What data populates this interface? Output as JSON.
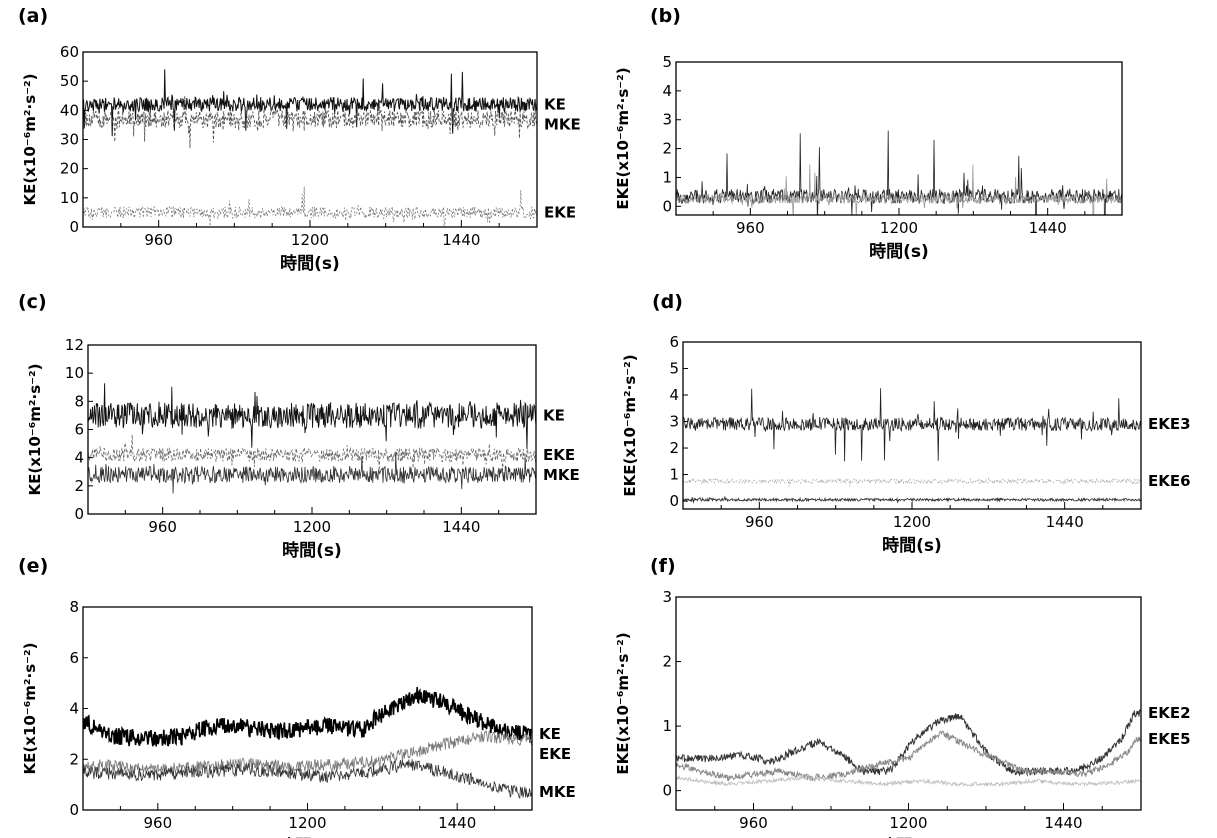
{
  "chart_data": [
    {
      "id": "a",
      "panel_label": "(a)",
      "type": "line",
      "xlabel": "時間(s)",
      "ylabel": "KE(x10⁻⁶m²·s⁻²)",
      "xlim": [
        840,
        1560
      ],
      "ylim": [
        0,
        60
      ],
      "xticks": [
        960,
        1200,
        1440
      ],
      "yticks": [
        0,
        10,
        20,
        30,
        40,
        50,
        60
      ],
      "series": [
        {
          "name": "KE",
          "mean": 42,
          "amp": 2.5,
          "spike": 12,
          "color": "#111111",
          "width": 1.0,
          "dash": ""
        },
        {
          "name": "MKE",
          "mean": 37,
          "amp": 3.0,
          "spike": 10,
          "color": "#555555",
          "width": 0.9,
          "dash": "3,2"
        },
        {
          "name": "EKE",
          "mean": 5,
          "amp": 2.0,
          "spike": 8,
          "color": "#777777",
          "width": 0.8,
          "dash": "2,2"
        }
      ]
    },
    {
      "id": "b",
      "panel_label": "(b)",
      "type": "line",
      "xlabel": "時間(s)",
      "ylabel": "EKE(x10⁻⁶m²·s⁻²)",
      "xlim": [
        840,
        1560
      ],
      "ylim": [
        -0.3,
        5
      ],
      "xticks": [
        960,
        1200,
        1440
      ],
      "yticks": [
        0,
        1,
        2,
        3,
        4,
        5
      ],
      "series": [
        {
          "name": "",
          "mean": 0.35,
          "amp": 0.25,
          "spike": 2.5,
          "color": "#222222",
          "width": 0.8,
          "dash": ""
        },
        {
          "name": "",
          "mean": 0.25,
          "amp": 0.15,
          "spike": 1.2,
          "color": "#999999",
          "width": 0.8,
          "dash": ""
        }
      ]
    },
    {
      "id": "c",
      "panel_label": "(c)",
      "type": "line",
      "xlabel": "時間(s)",
      "ylabel": "KE(x10⁻⁶m²·s⁻²)",
      "xlim": [
        840,
        1560
      ],
      "ylim": [
        0,
        12
      ],
      "xticks": [
        960,
        1200,
        1440
      ],
      "yticks": [
        0,
        2,
        4,
        6,
        8,
        10,
        12
      ],
      "series": [
        {
          "name": "KE",
          "mean": 7.0,
          "amp": 0.9,
          "spike": 2.5,
          "color": "#111111",
          "width": 0.9,
          "dash": ""
        },
        {
          "name": "EKE",
          "mean": 4.2,
          "amp": 0.5,
          "spike": 1.5,
          "color": "#666666",
          "width": 0.8,
          "dash": "3,2"
        },
        {
          "name": "MKE",
          "mean": 2.8,
          "amp": 0.6,
          "spike": 1.2,
          "color": "#333333",
          "width": 0.8,
          "dash": ""
        }
      ]
    },
    {
      "id": "d",
      "panel_label": "(d)",
      "type": "line",
      "xlabel": "時間(s)",
      "ylabel": "EKE(x10⁻⁶m²·s⁻²)",
      "xlim": [
        840,
        1560
      ],
      "ylim": [
        -0.3,
        6
      ],
      "xticks": [
        960,
        1200,
        1440
      ],
      "yticks": [
        0,
        1,
        2,
        3,
        4,
        5,
        6
      ],
      "series": [
        {
          "name": "EKE3",
          "mean": 2.9,
          "amp": 0.25,
          "spike": 1.4,
          "color": "#222222",
          "width": 0.8,
          "dash": ""
        },
        {
          "name": "EKE6",
          "mean": 0.75,
          "amp": 0.08,
          "spike": 0.2,
          "color": "#aaaaaa",
          "width": 0.8,
          "dash": "2,2"
        },
        {
          "name": "",
          "mean": 0.05,
          "amp": 0.05,
          "spike": 0.1,
          "color": "#333333",
          "width": 0.9,
          "dash": ""
        }
      ]
    },
    {
      "id": "e",
      "panel_label": "(e)",
      "type": "line",
      "xlabel": "時間(s)",
      "ylabel": "KE(x10⁻⁶m²·s⁻²)",
      "xlim": [
        840,
        1560
      ],
      "ylim": [
        0,
        8
      ],
      "xticks": [
        960,
        1200,
        1440
      ],
      "yticks": [
        0,
        2,
        4,
        6,
        8
      ],
      "series": [
        {
          "name": "KE",
          "points": [
            [
              840,
              3.5
            ],
            [
              890,
              2.9
            ],
            [
              940,
              2.8
            ],
            [
              1000,
              2.9
            ],
            [
              1060,
              3.4
            ],
            [
              1110,
              3.2
            ],
            [
              1160,
              3.1
            ],
            [
              1220,
              3.3
            ],
            [
              1290,
              3.2
            ],
            [
              1330,
              4.0
            ],
            [
              1380,
              4.6
            ],
            [
              1420,
              4.2
            ],
            [
              1470,
              3.6
            ],
            [
              1510,
              3.1
            ],
            [
              1540,
              3.0
            ]
          ],
          "noise": 0.35,
          "color": "#000000",
          "width": 1.6,
          "dash": ""
        },
        {
          "name": "EKE",
          "points": [
            [
              840,
              1.8
            ],
            [
              900,
              1.7
            ],
            [
              960,
              1.6
            ],
            [
              1020,
              1.7
            ],
            [
              1100,
              1.8
            ],
            [
              1160,
              1.7
            ],
            [
              1240,
              1.8
            ],
            [
              1300,
              1.9
            ],
            [
              1360,
              2.2
            ],
            [
              1420,
              2.6
            ],
            [
              1480,
              2.9
            ],
            [
              1540,
              2.8
            ]
          ],
          "noise": 0.25,
          "color": "#777777",
          "width": 0.8,
          "dash": ""
        },
        {
          "name": "MKE",
          "points": [
            [
              840,
              1.5
            ],
            [
              900,
              1.4
            ],
            [
              960,
              1.4
            ],
            [
              1020,
              1.5
            ],
            [
              1100,
              1.6
            ],
            [
              1160,
              1.5
            ],
            [
              1230,
              1.3
            ],
            [
              1300,
              1.5
            ],
            [
              1360,
              1.8
            ],
            [
              1420,
              1.5
            ],
            [
              1480,
              1.1
            ],
            [
              1510,
              0.8
            ],
            [
              1540,
              0.7
            ]
          ],
          "noise": 0.25,
          "color": "#333333",
          "width": 0.8,
          "dash": ""
        }
      ]
    },
    {
      "id": "f",
      "panel_label": "(f)",
      "type": "line",
      "xlabel": "時間(s)",
      "ylabel": "EKE(x10⁻⁶m²·s⁻²)",
      "xlim": [
        840,
        1560
      ],
      "ylim": [
        -0.3,
        3
      ],
      "xticks": [
        960,
        1200,
        1440
      ],
      "yticks": [
        0,
        1,
        2,
        3
      ],
      "series": [
        {
          "name": "EKE2",
          "points": [
            [
              840,
              0.5
            ],
            [
              890,
              0.5
            ],
            [
              940,
              0.55
            ],
            [
              990,
              0.45
            ],
            [
              1030,
              0.65
            ],
            [
              1060,
              0.75
            ],
            [
              1090,
              0.6
            ],
            [
              1130,
              0.3
            ],
            [
              1170,
              0.3
            ],
            [
              1210,
              0.8
            ],
            [
              1250,
              1.1
            ],
            [
              1280,
              1.15
            ],
            [
              1320,
              0.6
            ],
            [
              1360,
              0.3
            ],
            [
              1410,
              0.3
            ],
            [
              1460,
              0.3
            ],
            [
              1500,
              0.5
            ],
            [
              1530,
              0.8
            ],
            [
              1550,
              1.2
            ]
          ],
          "noise": 0.06,
          "color": "#333333",
          "width": 1.0,
          "dash": ""
        },
        {
          "name": "EKE5",
          "points": [
            [
              840,
              0.4
            ],
            [
              880,
              0.3
            ],
            [
              920,
              0.2
            ],
            [
              960,
              0.25
            ],
            [
              1000,
              0.3
            ],
            [
              1050,
              0.2
            ],
            [
              1100,
              0.25
            ],
            [
              1150,
              0.4
            ],
            [
              1200,
              0.5
            ],
            [
              1250,
              0.9
            ],
            [
              1290,
              0.7
            ],
            [
              1330,
              0.5
            ],
            [
              1380,
              0.3
            ],
            [
              1430,
              0.3
            ],
            [
              1470,
              0.25
            ],
            [
              1510,
              0.4
            ],
            [
              1540,
              0.6
            ],
            [
              1555,
              0.8
            ]
          ],
          "noise": 0.05,
          "color": "#888888",
          "width": 1.0,
          "dash": ""
        },
        {
          "name": "",
          "points": [
            [
              840,
              0.2
            ],
            [
              880,
              0.15
            ],
            [
              920,
              0.1
            ],
            [
              980,
              0.15
            ],
            [
              1040,
              0.2
            ],
            [
              1100,
              0.15
            ],
            [
              1160,
              0.1
            ],
            [
              1220,
              0.15
            ],
            [
              1280,
              0.1
            ],
            [
              1340,
              0.1
            ],
            [
              1400,
              0.15
            ],
            [
              1460,
              0.1
            ],
            [
              1520,
              0.12
            ],
            [
              1555,
              0.15
            ]
          ],
          "noise": 0.03,
          "color": "#bbbbbb",
          "width": 0.8,
          "dash": ""
        }
      ]
    }
  ]
}
